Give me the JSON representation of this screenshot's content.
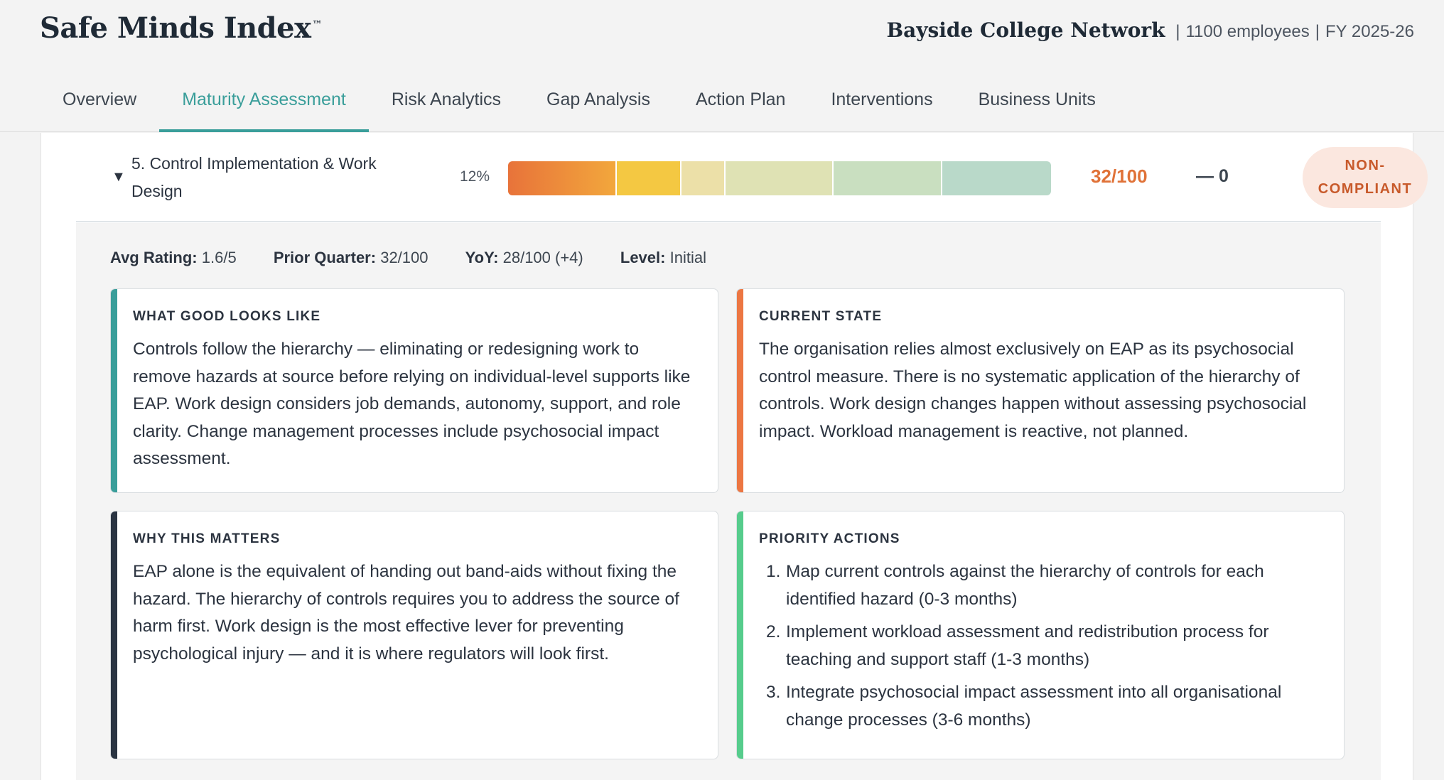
{
  "header": {
    "brand": "Safe Minds Index",
    "trademark": "™",
    "org_name": "Bayside College Network",
    "separator": "|",
    "employees": "1100 employees",
    "fiscal_year": "FY 2025-26"
  },
  "tabs": [
    {
      "label": "Overview",
      "active": false
    },
    {
      "label": "Maturity Assessment",
      "active": true
    },
    {
      "label": "Risk Analytics",
      "active": false
    },
    {
      "label": "Gap Analysis",
      "active": false
    },
    {
      "label": "Action Plan",
      "active": false
    },
    {
      "label": "Interventions",
      "active": false
    },
    {
      "label": "Business Units",
      "active": false
    }
  ],
  "domain_row": {
    "caret": "▼",
    "title": "5. Control Implementation & Work Design",
    "weight": "12%",
    "score": "32/100",
    "trend": "— 0",
    "status": "NON-COMPLIANT",
    "bar_colors": [
      "#e97a38",
      "#f4c842",
      "#ece0a8",
      "#dfe2b4",
      "#c9dfc0",
      "#b9d9c9"
    ],
    "bar_fractions": [
      0.2,
      0.12,
      0.08,
      0.2,
      0.2,
      0.2
    ]
  },
  "detail": {
    "avg_rating_label": "Avg Rating:",
    "avg_rating_value": "1.6/5",
    "prior_quarter_label": "Prior Quarter:",
    "prior_quarter_value": "32/100",
    "yoy_label": "YoY:",
    "yoy_value": "28/100 (+4)",
    "level_label": "Level:",
    "level_value": "Initial",
    "good": {
      "heading": "WHAT GOOD LOOKS LIKE",
      "body": "Controls follow the hierarchy — eliminating or redesigning work to remove hazards at source before relying on individual-level supports like EAP. Work design considers job demands, autonomy, support, and role clarity. Change management processes include psychosocial impact assessment."
    },
    "current": {
      "heading": "CURRENT STATE",
      "body": "The organisation relies almost exclusively on EAP as its psychosocial control measure. There is no systematic application of the hierarchy of controls. Work design changes happen without assessing psychosocial impact. Workload management is reactive, not planned."
    },
    "why": {
      "heading": "WHY THIS MATTERS",
      "body": "EAP alone is the equivalent of handing out band-aids without fixing the hazard. The hierarchy of controls requires you to address the source of harm first. Work design is the most effective lever for preventing psychological injury — and it is where regulators will look first."
    },
    "actions": {
      "heading": "PRIORITY ACTIONS",
      "items": [
        {
          "num": "1.",
          "text": "Map current controls against the hierarchy of controls for each identified hazard (0-3 months)"
        },
        {
          "num": "2.",
          "text": "Implement workload assessment and redistribution process for teaching and support staff (1-3 months)"
        },
        {
          "num": "3.",
          "text": "Integrate psychosocial impact assessment into all organisational change processes (3-6 months)"
        }
      ]
    }
  }
}
